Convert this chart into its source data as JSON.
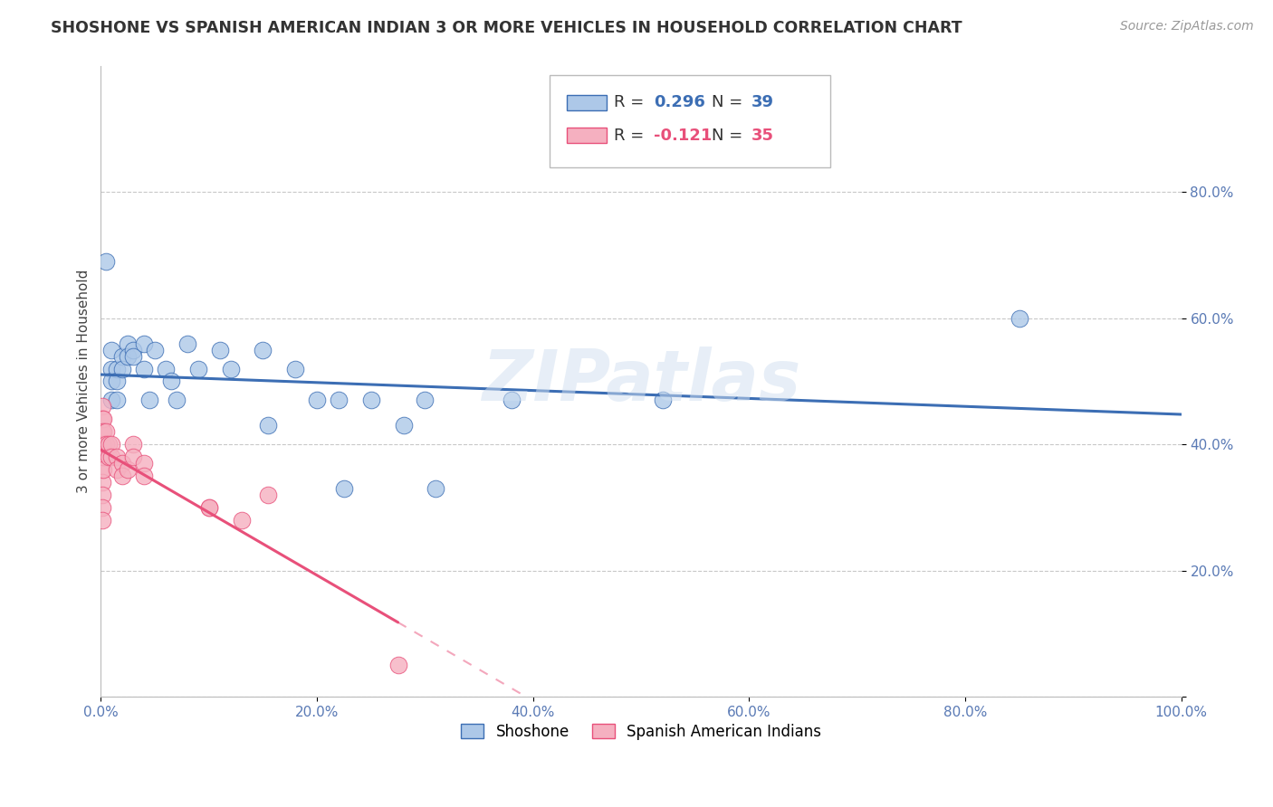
{
  "title": "SHOSHONE VS SPANISH AMERICAN INDIAN 3 OR MORE VEHICLES IN HOUSEHOLD CORRELATION CHART",
  "source": "Source: ZipAtlas.com",
  "ylabel": "3 or more Vehicles in Household",
  "xlim": [
    0.0,
    1.0
  ],
  "ylim": [
    0.0,
    1.0
  ],
  "xtick_positions": [
    0.0,
    0.2,
    0.4,
    0.6,
    0.8,
    1.0
  ],
  "xtick_labels": [
    "0.0%",
    "20.0%",
    "40.0%",
    "60.0%",
    "80.0%",
    "100.0%"
  ],
  "ytick_positions": [
    0.0,
    0.2,
    0.4,
    0.6,
    0.8
  ],
  "ytick_labels": [
    "",
    "20.0%",
    "40.0%",
    "60.0%",
    "80.0%"
  ],
  "grid_color": "#c8c8c8",
  "background_color": "#ffffff",
  "shoshone_color": "#adc8e8",
  "spanish_color": "#f5b0c0",
  "shoshone_line_color": "#3c6eb4",
  "spanish_line_color": "#e8507a",
  "R_shoshone": 0.296,
  "N_shoshone": 39,
  "R_spanish": -0.121,
  "N_spanish": 35,
  "watermark": "ZIPatlas",
  "legend_label_shoshone": "Shoshone",
  "legend_label_spanish": "Spanish American Indians",
  "shoshone_x": [
    0.005,
    0.005,
    0.01,
    0.01,
    0.01,
    0.01,
    0.015,
    0.015,
    0.015,
    0.02,
    0.02,
    0.025,
    0.025,
    0.03,
    0.03,
    0.04,
    0.04,
    0.045,
    0.05,
    0.06,
    0.065,
    0.07,
    0.08,
    0.09,
    0.11,
    0.12,
    0.15,
    0.155,
    0.18,
    0.2,
    0.22,
    0.225,
    0.25,
    0.28,
    0.3,
    0.31,
    0.38,
    0.52,
    0.85
  ],
  "shoshone_y": [
    0.69,
    0.38,
    0.55,
    0.52,
    0.5,
    0.47,
    0.52,
    0.5,
    0.47,
    0.54,
    0.52,
    0.56,
    0.54,
    0.55,
    0.54,
    0.56,
    0.52,
    0.47,
    0.55,
    0.52,
    0.5,
    0.47,
    0.56,
    0.52,
    0.55,
    0.52,
    0.55,
    0.43,
    0.52,
    0.47,
    0.47,
    0.33,
    0.47,
    0.43,
    0.47,
    0.33,
    0.47,
    0.47,
    0.6
  ],
  "spanish_x": [
    0.001,
    0.001,
    0.001,
    0.001,
    0.001,
    0.001,
    0.001,
    0.001,
    0.001,
    0.001,
    0.002,
    0.002,
    0.002,
    0.002,
    0.002,
    0.005,
    0.005,
    0.007,
    0.007,
    0.01,
    0.01,
    0.015,
    0.015,
    0.02,
    0.02,
    0.025,
    0.03,
    0.03,
    0.04,
    0.04,
    0.1,
    0.1,
    0.13,
    0.155,
    0.275
  ],
  "spanish_y": [
    0.46,
    0.44,
    0.42,
    0.4,
    0.38,
    0.36,
    0.34,
    0.32,
    0.3,
    0.28,
    0.44,
    0.42,
    0.4,
    0.38,
    0.36,
    0.42,
    0.4,
    0.4,
    0.38,
    0.4,
    0.38,
    0.38,
    0.36,
    0.37,
    0.35,
    0.36,
    0.4,
    0.38,
    0.37,
    0.35,
    0.3,
    0.3,
    0.28,
    0.32,
    0.05
  ]
}
